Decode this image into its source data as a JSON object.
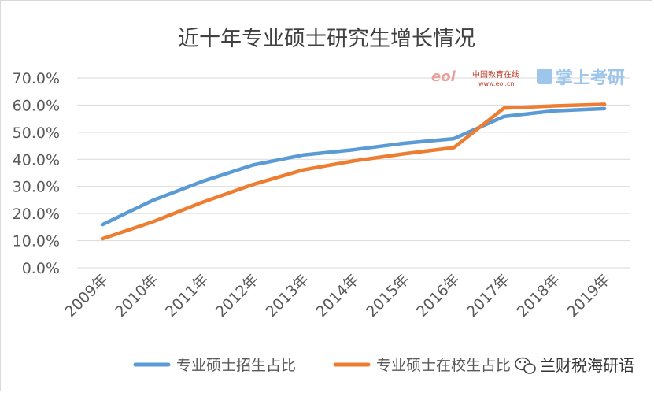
{
  "chart_data": {
    "type": "line",
    "title": "近十年专业硕士研究生增长情况",
    "categories": [
      "2009年",
      "2010年",
      "2011年",
      "2012年",
      "2013年",
      "2014年",
      "2015年",
      "2016年",
      "2017年",
      "2018年",
      "2019年"
    ],
    "series": [
      {
        "name": "专业硕士招生占比",
        "color": "#5b9bd5",
        "values": [
          15.9,
          24.8,
          31.9,
          37.9,
          41.6,
          43.5,
          45.9,
          47.6,
          55.8,
          57.9,
          58.7
        ]
      },
      {
        "name": "专业硕士在校生占比",
        "color": "#ed7d31",
        "values": [
          10.7,
          16.9,
          24.2,
          30.7,
          36.1,
          39.4,
          42.0,
          44.3,
          58.9,
          59.7,
          60.3
        ]
      }
    ],
    "yticks": [
      "0.0%",
      "10.0%",
      "20.0%",
      "30.0%",
      "40.0%",
      "50.0%",
      "60.0%",
      "70.0%"
    ],
    "ylim": [
      0,
      70
    ],
    "grid": true,
    "legend_position": "bottom"
  },
  "watermarks": {
    "eol_logo": "eol",
    "eol_site": "中国教育在线",
    "eol_url": "www.eol.cn",
    "brand": "掌上考研",
    "wechat_account": "兰财税海研语"
  }
}
